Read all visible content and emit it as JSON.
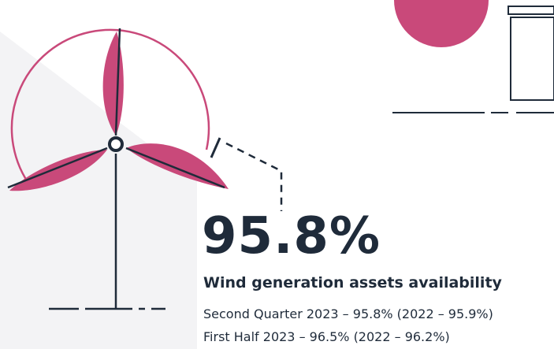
{
  "stat": {
    "value": "95.8%",
    "label": "Wind generation assets availability",
    "lines": [
      "Second Quarter 2023 – 95.8% (2022 – 95.9%)",
      "First Half 2023 – 96.5% (2022 – 96.2%)"
    ]
  }
}
